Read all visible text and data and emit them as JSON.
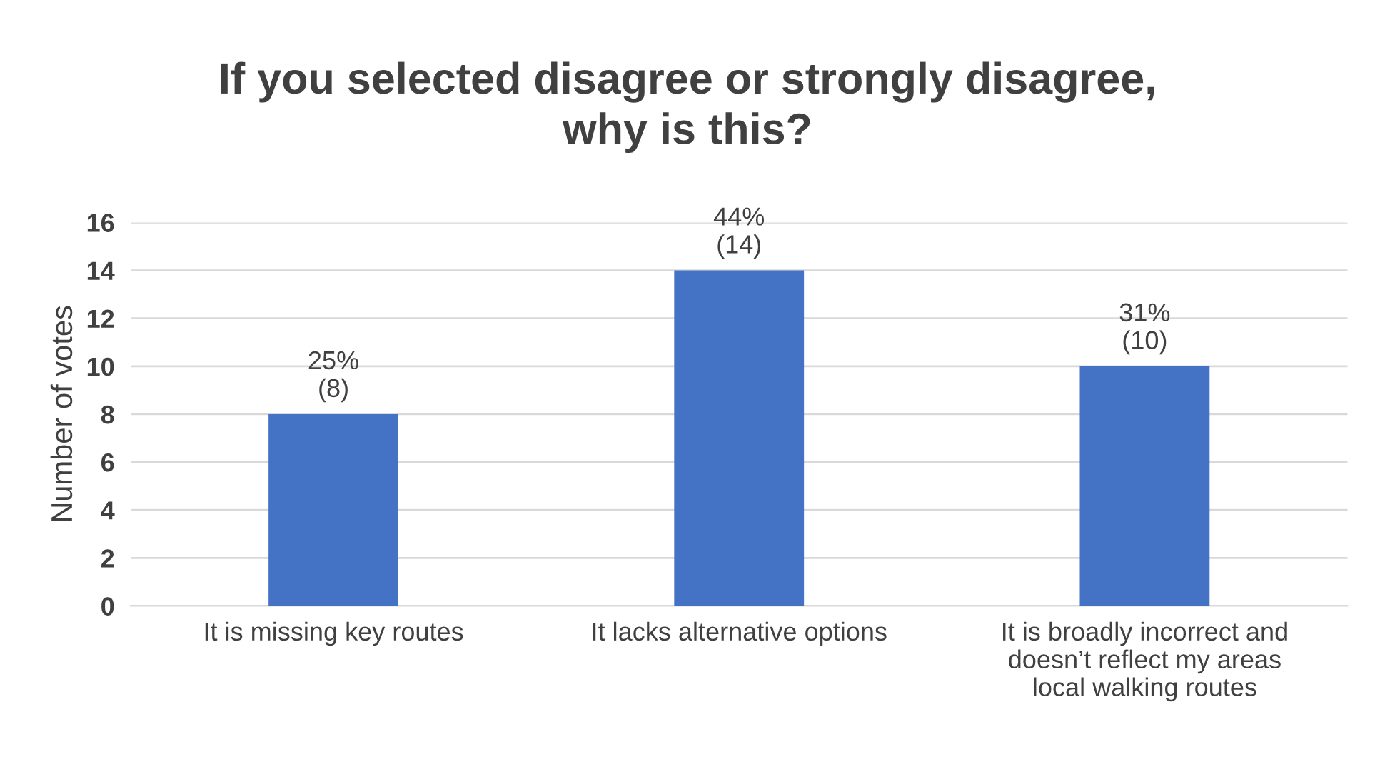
{
  "chart_data": {
    "type": "bar",
    "title": "If you selected disagree or strongly disagree,\nwhy is this?",
    "ylabel": "Number of votes",
    "categories": [
      "It is missing key routes",
      "It lacks alternative options",
      "It is broadly incorrect and\ndoesn’t reflect my areas\nlocal walking routes"
    ],
    "values": [
      8,
      14,
      10
    ],
    "value_labels": [
      "25%\n(8)",
      "44%\n(14)",
      "31%\n(10)"
    ],
    "color": "#4472c4",
    "ylim": [
      0,
      16
    ],
    "yticks": [
      0,
      2,
      4,
      6,
      8,
      10,
      12,
      14,
      16
    ],
    "grid": "y"
  }
}
